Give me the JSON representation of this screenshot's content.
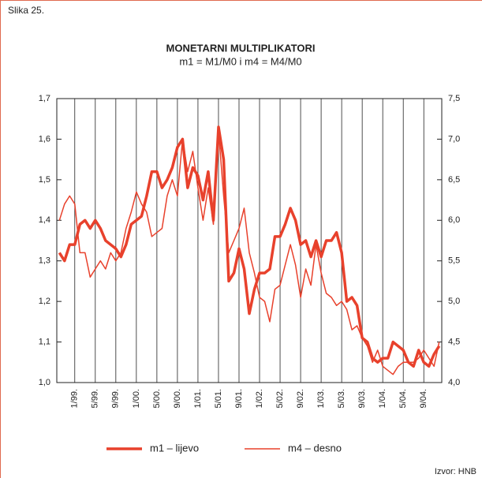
{
  "figure_label": "Slika 25.",
  "source": "Izvor: HNB",
  "chart_data": {
    "type": "line",
    "title": "MONETARNI MULTIPLIKATORI",
    "subtitle": "m1 = M1/M0 i m4 = M4/M0",
    "categories": [
      null,
      null,
      null,
      "1/99.",
      null,
      null,
      null,
      "5/99.",
      null,
      null,
      null,
      "9/99.",
      null,
      null,
      null,
      "1/00.",
      null,
      null,
      null,
      "5/00.",
      null,
      null,
      null,
      "9/00.",
      null,
      null,
      null,
      "1/01.",
      null,
      null,
      null,
      "5/01.",
      null,
      null,
      null,
      "9/01.",
      null,
      null,
      null,
      "1/02.",
      null,
      null,
      null,
      "5/02.",
      null,
      null,
      null,
      "9/02.",
      null,
      null,
      null,
      "1/03.",
      null,
      null,
      null,
      "5/03.",
      null,
      null,
      null,
      "9/03.",
      null,
      null,
      null,
      "1/04.",
      null,
      null,
      null,
      "5/04.",
      null,
      null,
      null,
      "9/04.",
      null,
      null,
      null
    ],
    "series": [
      {
        "name": "m1 – lijevo",
        "color": "#e8412c",
        "width": 3.5,
        "values": [
          1.32,
          1.3,
          1.34,
          1.34,
          1.39,
          1.4,
          1.38,
          1.4,
          1.38,
          1.35,
          1.34,
          1.33,
          1.31,
          1.34,
          1.39,
          1.4,
          1.41,
          1.46,
          1.52,
          1.52,
          1.48,
          1.5,
          1.53,
          1.58,
          1.6,
          1.48,
          1.53,
          1.51,
          1.45,
          1.52,
          1.4,
          1.63,
          1.55,
          1.25,
          1.27,
          1.33,
          1.28,
          1.17,
          1.23,
          1.27,
          1.27,
          1.28,
          1.36,
          1.36,
          1.39,
          1.43,
          1.4,
          1.34,
          1.35,
          1.31,
          1.35,
          1.31,
          1.35,
          1.35,
          1.37,
          1.32,
          1.2,
          1.21,
          1.19,
          1.11,
          1.1,
          1.06,
          1.05,
          1.06,
          1.06,
          1.1,
          1.09,
          1.08,
          1.05,
          1.04,
          1.08,
          1.05,
          1.04,
          1.07,
          1.09
        ]
      },
      {
        "name": "m4 – desno",
        "color": "#e8412c",
        "width": 1.5,
        "axis": "y2",
        "values": [
          6.0,
          6.2,
          6.3,
          6.2,
          5.6,
          5.6,
          5.3,
          5.4,
          5.5,
          5.4,
          5.6,
          5.5,
          5.6,
          5.9,
          6.1,
          6.35,
          6.2,
          6.1,
          5.8,
          5.85,
          5.9,
          6.3,
          6.5,
          6.3,
          7.0,
          6.6,
          6.85,
          6.4,
          6.0,
          6.4,
          5.95,
          7.1,
          6.3,
          5.6,
          5.75,
          5.9,
          6.15,
          5.6,
          5.35,
          5.05,
          5.0,
          4.75,
          5.15,
          5.2,
          5.45,
          5.7,
          5.45,
          5.05,
          5.4,
          5.2,
          5.7,
          5.35,
          5.1,
          5.05,
          4.95,
          5.0,
          4.9,
          4.65,
          4.7,
          4.55,
          4.45,
          4.25,
          4.4,
          4.2,
          4.15,
          4.1,
          4.2,
          4.25,
          4.25,
          4.25,
          4.3,
          4.4,
          4.3,
          4.2,
          4.5
        ]
      }
    ],
    "ylim": [
      1.0,
      1.7
    ],
    "yticks": [
      {
        "value": 1.0,
        "label": "1,0"
      },
      {
        "value": 1.1,
        "label": "1,1"
      },
      {
        "value": 1.2,
        "label": "1,2"
      },
      {
        "value": 1.3,
        "label": "1,3"
      },
      {
        "value": 1.4,
        "label": "1,4"
      },
      {
        "value": 1.5,
        "label": "1,5"
      },
      {
        "value": 1.6,
        "label": "1,6"
      },
      {
        "value": 1.7,
        "label": "1,7"
      }
    ],
    "y2lim": [
      4.0,
      7.5
    ],
    "y2ticks": [
      {
        "value": 4.0,
        "label": "4,0"
      },
      {
        "value": 4.5,
        "label": "4,5"
      },
      {
        "value": 5.0,
        "label": "5,0"
      },
      {
        "value": 5.5,
        "label": "5,5"
      },
      {
        "value": 6.0,
        "label": "6,0"
      },
      {
        "value": 6.5,
        "label": "6,5"
      },
      {
        "value": 7.0,
        "label": "7,0"
      },
      {
        "value": 7.5,
        "label": "7,5"
      }
    ],
    "grid": "x"
  }
}
